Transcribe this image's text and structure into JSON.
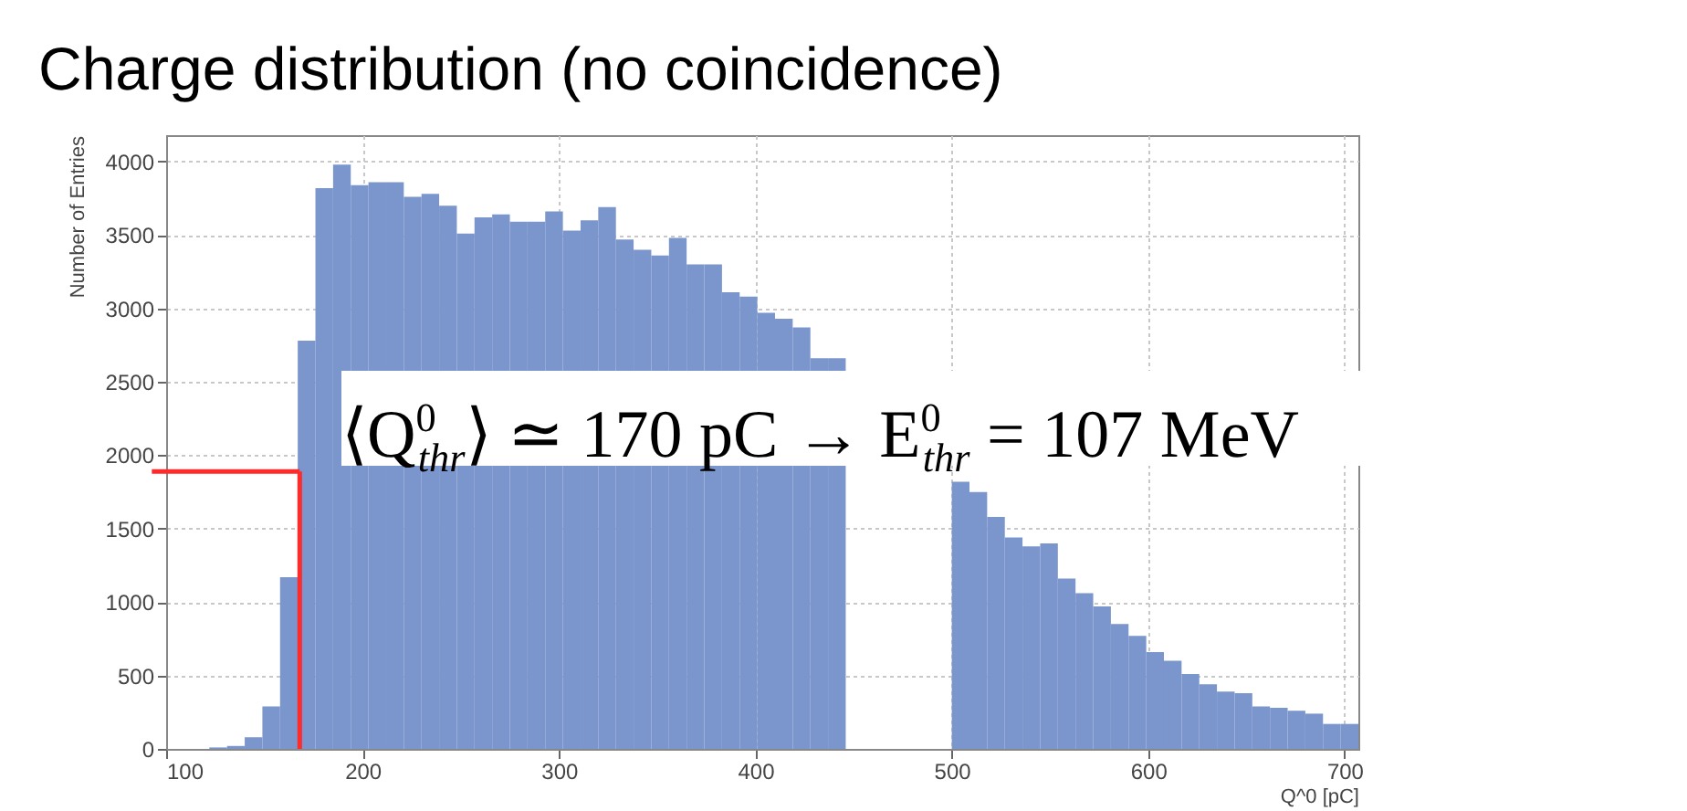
{
  "chart_data": {
    "type": "histogram",
    "title": "Charge distribution (no coincidence)",
    "xlabel": "Q^0 [pC]",
    "ylabel": "Number of Entries",
    "bins": [
      122,
      131,
      140,
      149,
      158,
      167,
      176,
      185,
      194,
      203,
      212,
      221,
      230,
      239,
      248,
      257,
      266,
      275,
      284,
      293,
      302,
      311,
      320,
      329,
      338,
      347,
      356,
      365,
      374,
      383,
      392,
      401,
      410,
      419,
      428,
      437,
      446,
      455,
      464,
      473,
      482,
      491,
      500,
      509,
      518,
      527,
      536,
      545,
      554,
      563,
      572,
      581,
      590,
      599,
      608,
      617,
      626,
      635,
      644,
      653,
      662,
      671,
      680,
      689,
      698,
      707
    ],
    "values": [
      10,
      20,
      80,
      290,
      1170,
      2780,
      3820,
      3980,
      3840,
      3860,
      3860,
      3760,
      3780,
      3700,
      3510,
      3620,
      3640,
      3590,
      3590,
      3660,
      3530,
      3600,
      3690,
      3470,
      3400,
      3360,
      3480,
      3300,
      3300,
      3110,
      3080,
      2970,
      2930,
      2870,
      2660,
      2660,
      null,
      null,
      null,
      null,
      null,
      null,
      1820,
      1750,
      1580,
      1440,
      1380,
      1400,
      1160,
      1060,
      970,
      850,
      770,
      660,
      600,
      510,
      440,
      390,
      380,
      290,
      280,
      260,
      240,
      170,
      170
    ],
    "color": "#7b95cd",
    "xlim": [
      100,
      707
    ],
    "ylim": [
      0,
      4180
    ],
    "xticks": [
      100,
      200,
      300,
      400,
      500,
      600,
      700
    ],
    "yticks": [
      0,
      500,
      1000,
      1500,
      2000,
      2500,
      3000,
      3500,
      4000
    ],
    "grid": true,
    "ref_lines": [
      {
        "axis": "x",
        "value": 168,
        "color": "#ff2a2a"
      },
      {
        "axis": "y",
        "value": 1890,
        "color": "#ff2a2a"
      }
    ],
    "annotations": [
      "⟨Q$^{0}$$_{thr}$⟩ ≃ 170 pC → E$^{0}$$_{thr}$ = 107 MeV"
    ]
  }
}
